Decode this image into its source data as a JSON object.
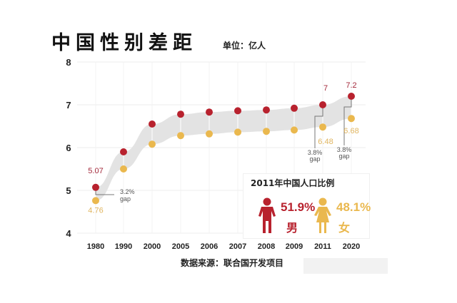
{
  "header": {
    "title": "中国性别差距",
    "unit": "单位：亿人"
  },
  "footer": {
    "source": "数据来源：联合国开发项目"
  },
  "colors": {
    "male": "#b8222e",
    "female": "#eab84e",
    "band": "#e3e3e3",
    "grid": "#eeeeee"
  },
  "inset": {
    "title": "2011年中国人口比例",
    "male": {
      "percent": "51.9%",
      "label": "男",
      "icon": "male-person-icon"
    },
    "female": {
      "percent": "48.1%",
      "label": "女",
      "icon": "female-person-icon"
    }
  },
  "annotations": [
    {
      "year": "1980",
      "text1": "3.2%",
      "text2": "gap"
    },
    {
      "year": "2011",
      "text1": "3.8%",
      "text2": "gap"
    },
    {
      "year": "2020",
      "text1": "3.8%",
      "text2": "gap"
    }
  ],
  "chart_data": {
    "type": "line",
    "title": "中国性别差距",
    "subtitle": "单位：亿人",
    "xlabel": "",
    "ylabel": "",
    "categories": [
      "1980",
      "1990",
      "2000",
      "2005",
      "2006",
      "2007",
      "2008",
      "2009",
      "2011",
      "2020"
    ],
    "series": [
      {
        "name": "男",
        "color": "#b8222e",
        "values": [
          5.07,
          5.9,
          6.55,
          6.78,
          6.83,
          6.86,
          6.88,
          6.92,
          7.0,
          7.2
        ]
      },
      {
        "name": "女",
        "color": "#eab84e",
        "values": [
          4.76,
          5.5,
          6.08,
          6.28,
          6.32,
          6.36,
          6.38,
          6.41,
          6.48,
          6.68
        ]
      }
    ],
    "data_labels": [
      {
        "series": "男",
        "year": "1980",
        "text": "5.07"
      },
      {
        "series": "女",
        "year": "1980",
        "text": "4.76"
      },
      {
        "series": "男",
        "year": "2011",
        "text": "7"
      },
      {
        "series": "女",
        "year": "2011",
        "text": "6.48"
      },
      {
        "series": "男",
        "year": "2020",
        "text": "7.2"
      },
      {
        "series": "女",
        "year": "2020",
        "text": "6.68"
      }
    ],
    "yticks": [
      "8",
      "7",
      "6",
      "5",
      "4"
    ],
    "ylim": [
      4,
      8
    ],
    "grid": true,
    "legend": "none",
    "source": "数据来源：联合国开发项目",
    "inset": {
      "title": "2011年中国人口比例",
      "male_pct": 51.9,
      "female_pct": 48.1
    }
  }
}
